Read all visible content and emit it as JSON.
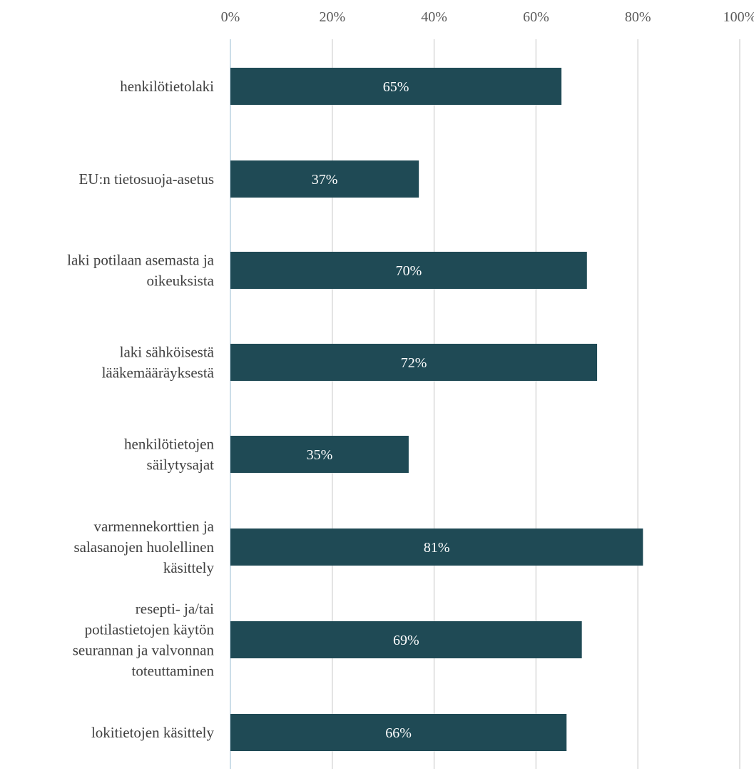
{
  "chart_data": {
    "type": "bar",
    "orientation": "horizontal",
    "categories": [
      [
        "henkilötietolaki"
      ],
      [
        "EU:n tietosuoja-asetus"
      ],
      [
        "laki potilaan asemasta ja",
        "oikeuksista"
      ],
      [
        "laki sähköisestä",
        "lääkemääräyksestä"
      ],
      [
        "henkilötietojen",
        "säilytysajat"
      ],
      [
        "varmennekorttien ja",
        "salasanojen huolellinen",
        "käsittely"
      ],
      [
        "resepti- ja/tai",
        "potilastietojen käytön",
        "seurannan ja valvonnan",
        "toteuttaminen"
      ],
      [
        "lokitietojen käsittely"
      ]
    ],
    "values": [
      65,
      37,
      70,
      72,
      35,
      81,
      69,
      66
    ],
    "data_labels": [
      "65%",
      "37%",
      "70%",
      "72%",
      "35%",
      "81%",
      "69%",
      "66%"
    ],
    "xlim": [
      0,
      100
    ],
    "x_ticks": [
      "0%",
      "20%",
      "40%",
      "60%",
      "80%",
      "100%"
    ],
    "x_axis_position": "top",
    "grid": true,
    "bar_color": "#1f4a55",
    "legend": "none"
  }
}
